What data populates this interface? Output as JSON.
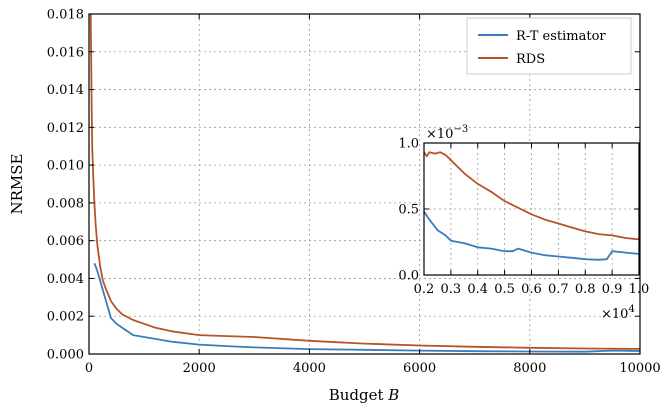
{
  "colors": {
    "rt": "#3a7dbf",
    "rds": "#b5542a",
    "grid": "#9a9a9a"
  },
  "chart_data": [
    {
      "type": "line",
      "xlabel": "Budget",
      "xlabel_var": "B",
      "ylabel": "NRMSE",
      "xlim": [
        0,
        10000
      ],
      "ylim": [
        0,
        0.018
      ],
      "xticks": [
        0,
        2000,
        4000,
        6000,
        8000,
        10000
      ],
      "xtick_labels": [
        "0",
        "2000",
        "4000",
        "6000",
        "8000",
        "10000"
      ],
      "yticks": [
        0,
        0.002,
        0.004,
        0.006,
        0.008,
        0.01,
        0.012,
        0.014,
        0.016,
        0.018
      ],
      "ytick_labels": [
        "0.000",
        "0.002",
        "0.004",
        "0.006",
        "0.008",
        "0.010",
        "0.012",
        "0.014",
        "0.016",
        "0.018"
      ],
      "grid": true,
      "legend": "top-right",
      "series": [
        {
          "name": "R-T estimator",
          "color": "#3a7dbf",
          "x": [
            100,
            150,
            200,
            300,
            400,
            500,
            600,
            800,
            1000,
            1200,
            1500,
            2000,
            2500,
            3000,
            4000,
            5000,
            6000,
            7000,
            8000,
            9000,
            9500,
            10000
          ],
          "y": [
            0.0048,
            0.0044,
            0.0039,
            0.0029,
            0.0019,
            0.0016,
            0.0014,
            0.001,
            0.0009,
            0.0008,
            0.00065,
            0.0005,
            0.00042,
            0.00035,
            0.00026,
            0.00022,
            0.00018,
            0.00015,
            0.00013,
            0.00012,
            0.00018,
            0.00016
          ]
        },
        {
          "name": "RDS",
          "color": "#b5542a",
          "x": [
            30,
            40,
            50,
            60,
            80,
            100,
            120,
            150,
            200,
            250,
            300,
            400,
            500,
            600,
            800,
            1000,
            1200,
            1500,
            2000,
            2500,
            3000,
            4000,
            5000,
            6000,
            7000,
            8000,
            9000,
            10000
          ],
          "y": [
            0.018,
            0.0155,
            0.0125,
            0.0108,
            0.0092,
            0.0079,
            0.0069,
            0.0058,
            0.0047,
            0.0039,
            0.0035,
            0.0028,
            0.0024,
            0.0021,
            0.0018,
            0.0016,
            0.0014,
            0.0012,
            0.001,
            0.00095,
            0.0009,
            0.0007,
            0.00055,
            0.00045,
            0.00038,
            0.00033,
            0.00029,
            0.00027
          ]
        }
      ]
    },
    {
      "type": "line",
      "role": "inset",
      "xlim": [
        0.2,
        1.0
      ],
      "ylim": [
        0,
        1.0
      ],
      "xticks": [
        0.2,
        0.3,
        0.4,
        0.5,
        0.6,
        0.7,
        0.8,
        0.9,
        1.0
      ],
      "xtick_labels": [
        "0.2",
        "0.3",
        "0.4",
        "0.5",
        "0.6",
        "0.7",
        "0.8",
        "0.9",
        "1.0"
      ],
      "yticks": [
        0,
        0.5,
        1.0
      ],
      "ytick_labels": [
        "0.0",
        "0.5",
        "1.0"
      ],
      "x_multiplier": "×10",
      "x_multiplier_exp": "4",
      "y_multiplier": "×10",
      "y_multiplier_exp": "−3",
      "grid": true,
      "series": [
        {
          "name": "R-T estimator",
          "color": "#3a7dbf",
          "x": [
            0.2,
            0.22,
            0.25,
            0.28,
            0.3,
            0.35,
            0.4,
            0.45,
            0.5,
            0.53,
            0.55,
            0.6,
            0.65,
            0.7,
            0.75,
            0.8,
            0.85,
            0.88,
            0.9,
            0.95,
            1.0
          ],
          "y": [
            0.48,
            0.42,
            0.34,
            0.3,
            0.26,
            0.24,
            0.21,
            0.2,
            0.18,
            0.18,
            0.2,
            0.17,
            0.15,
            0.14,
            0.13,
            0.12,
            0.115,
            0.12,
            0.18,
            0.17,
            0.16
          ]
        },
        {
          "name": "RDS",
          "color": "#b5542a",
          "x": [
            0.2,
            0.21,
            0.22,
            0.24,
            0.26,
            0.28,
            0.3,
            0.35,
            0.4,
            0.45,
            0.5,
            0.55,
            0.6,
            0.65,
            0.7,
            0.75,
            0.8,
            0.85,
            0.9,
            0.95,
            1.0
          ],
          "y": [
            0.93,
            0.9,
            0.93,
            0.92,
            0.93,
            0.91,
            0.87,
            0.77,
            0.69,
            0.63,
            0.56,
            0.51,
            0.46,
            0.42,
            0.39,
            0.36,
            0.33,
            0.31,
            0.3,
            0.28,
            0.27
          ]
        }
      ]
    }
  ]
}
